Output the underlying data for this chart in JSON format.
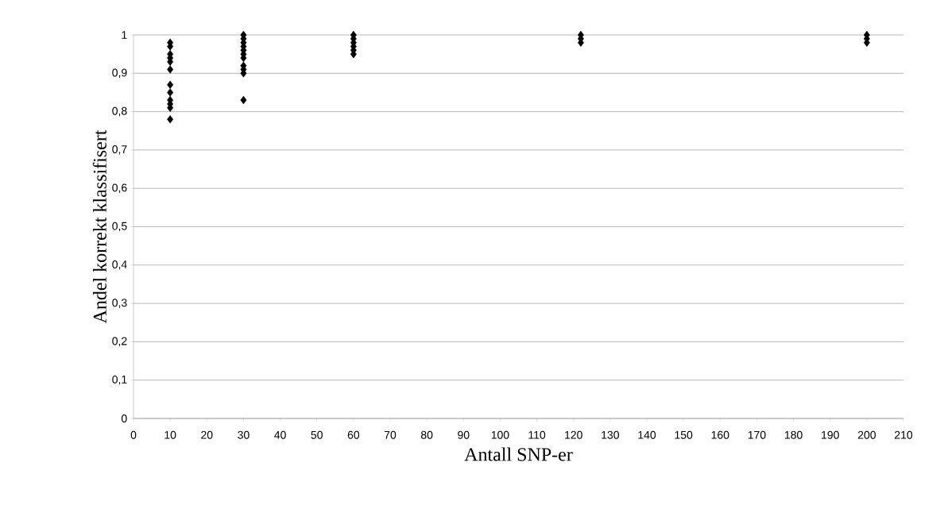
{
  "chart_data": {
    "type": "scatter",
    "xlabel": "Antall SNP-er",
    "ylabel": "Andel korrekt klassifisert",
    "x": [
      10,
      10,
      10,
      10,
      10,
      10,
      10,
      10,
      10,
      10,
      10,
      10,
      30,
      30,
      30,
      30,
      30,
      30,
      30,
      30,
      30,
      30,
      30,
      60,
      60,
      60,
      60,
      60,
      60,
      122,
      122,
      122,
      200,
      200,
      200
    ],
    "values": [
      0.98,
      0.97,
      0.95,
      0.94,
      0.93,
      0.91,
      0.87,
      0.85,
      0.83,
      0.82,
      0.81,
      0.78,
      1.0,
      0.99,
      0.98,
      0.97,
      0.96,
      0.95,
      0.94,
      0.92,
      0.91,
      0.9,
      0.83,
      1.0,
      0.99,
      0.98,
      0.97,
      0.96,
      0.95,
      1.0,
      0.99,
      0.98,
      1.0,
      0.99,
      0.98
    ],
    "color": "#000000",
    "marker": "diamond",
    "xlim": [
      0,
      210
    ],
    "xticks": [
      0,
      10,
      20,
      30,
      40,
      50,
      60,
      70,
      80,
      90,
      100,
      110,
      120,
      130,
      140,
      150,
      160,
      170,
      180,
      190,
      200,
      210
    ],
    "ylim": [
      0,
      1
    ],
    "yticks": [
      0,
      {
        "value": 0.1,
        "label": "0,1"
      },
      {
        "value": 0.2,
        "label": "0,2"
      },
      {
        "value": 0.3,
        "label": "0,3"
      },
      {
        "value": 0.4,
        "label": "0,4"
      },
      {
        "value": 0.5,
        "label": "0,5"
      },
      {
        "value": 0.6,
        "label": "0,6"
      },
      {
        "value": 0.7,
        "label": "0,7"
      },
      {
        "value": 0.8,
        "label": "0,8"
      },
      {
        "value": 0.9,
        "label": "0,9"
      },
      1
    ],
    "grid": "y"
  }
}
